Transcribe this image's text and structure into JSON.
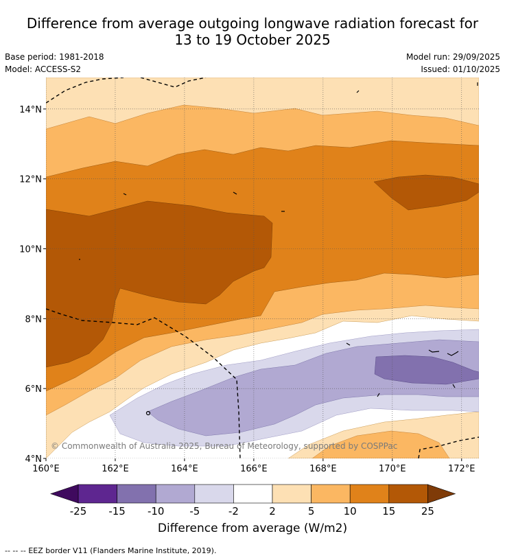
{
  "header": {
    "title_line1": "Difference from average outgoing longwave radiation forecast for",
    "title_line2": "13 to 19 October 2025",
    "base_period": "Base period: 1981-2018",
    "model": "Model: ACCESS-S2",
    "model_run": "Model run: 29/09/2025",
    "issued": "Issued: 01/10/2025"
  },
  "chart_data": {
    "type": "heatmap",
    "title": "Difference from average outgoing longwave radiation forecast for 13 to 19 October 2025",
    "x_ticks": [
      "160°E",
      "162°E",
      "164°E",
      "166°E",
      "168°E",
      "170°E",
      "172°E"
    ],
    "x_tick_values": [
      160,
      162,
      164,
      166,
      168,
      170,
      172
    ],
    "y_ticks": [
      "4°N",
      "6°N",
      "8°N",
      "10°N",
      "12°N",
      "14°N"
    ],
    "y_tick_values": [
      4,
      6,
      8,
      10,
      12,
      14
    ],
    "xlim": [
      160,
      172.5
    ],
    "ylim": [
      4,
      14.9
    ],
    "grid": true,
    "watermark": "© Commonwealth of Australia 2025, Bureau of Meteorology, supported by COSPPac",
    "colorbar": {
      "label": "Difference from average (W/m2)",
      "ticks": [
        "-25",
        "-15",
        "-10",
        "-5",
        "-2",
        "2",
        "5",
        "10",
        "15",
        "25"
      ],
      "bins": [
        {
          "range": "< -25",
          "color": "#3f0a5e"
        },
        {
          "range": "-25 to -15",
          "color": "#5e2690"
        },
        {
          "range": "-15 to -10",
          "color": "#8271ae"
        },
        {
          "range": "-10 to -5",
          "color": "#b1a9d2"
        },
        {
          "range": "-5 to -2",
          "color": "#d9d8eb"
        },
        {
          "range": "-2 to 2",
          "color": "#ffffff"
        },
        {
          "range": "2 to 5",
          "color": "#fde0b4"
        },
        {
          "range": "5 to 10",
          "color": "#fbb762"
        },
        {
          "range": "10 to 15",
          "color": "#e0821a"
        },
        {
          "range": "15 to 25",
          "color": "#b35806"
        },
        {
          "range": "> 25",
          "color": "#7f3b08"
        }
      ]
    },
    "regions": [
      {
        "level": "2 to 5",
        "description": "northern band and southern fringe"
      },
      {
        "level": "5 to 10",
        "description": "bands around 13.5°N and 7.5°N"
      },
      {
        "level": "10 to 15",
        "description": "broad band 8.5°N to 13°N"
      },
      {
        "level": "15 to 25",
        "description": "western core 8°N–11°N and patch near 171°E 12°N"
      },
      {
        "level": "-2 to 2",
        "description": "neutral band 5°N–7°N"
      },
      {
        "level": "-5 to -2",
        "description": "southeastern area"
      },
      {
        "level": "-10 to -5",
        "description": "area 4.5°N–7°N east of 163°E"
      },
      {
        "level": "-15 to -10",
        "description": "patch near 170°E 6.5°N"
      }
    ]
  },
  "footer": {
    "legend_symbol": "-- -- --",
    "legend_text": "EEZ border V11 (Flanders Marine Institute, 2019)."
  }
}
